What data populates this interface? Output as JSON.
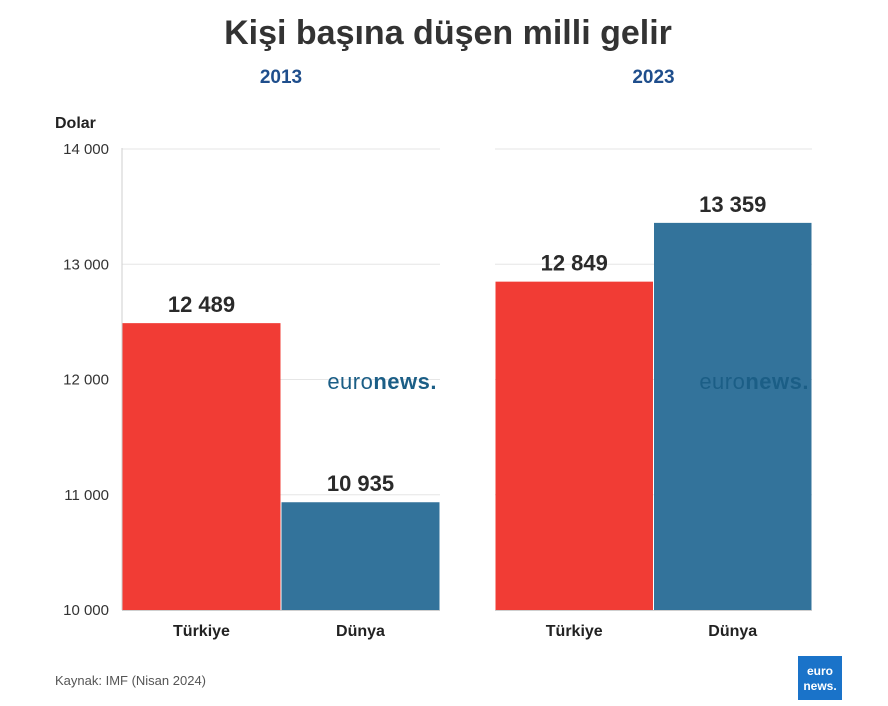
{
  "chart_data": {
    "type": "bar",
    "title": "Kişi başına düşen milli gelir",
    "ylabel": "Dolar",
    "ylim": [
      10000,
      14000
    ],
    "yticks": [
      10000,
      11000,
      12000,
      13000,
      14000
    ],
    "ytick_labels": [
      "10 000",
      "11 000",
      "12 000",
      "13 000",
      "14 000"
    ],
    "grid": true,
    "panels": [
      {
        "period": "2013",
        "categories": [
          "Türkiye",
          "Dünya"
        ],
        "values": [
          12489,
          10935
        ],
        "value_labels": [
          "12 489",
          "10 935"
        ],
        "colors": [
          "#f13c35",
          "#33739b"
        ]
      },
      {
        "period": "2023",
        "categories": [
          "Türkiye",
          "Dünya"
        ],
        "values": [
          12849,
          13359
        ],
        "value_labels": [
          "12 849",
          "13 359"
        ],
        "colors": [
          "#f13c35",
          "#33739b"
        ]
      }
    ]
  },
  "source": "Kaynak: IMF (Nisan 2024)",
  "watermark": {
    "light": "euro",
    "bold": "news."
  },
  "logo": {
    "line1": "euro",
    "line2": "news."
  },
  "colors": {
    "turkiye": "#f13c35",
    "dunya": "#33739b",
    "period": "#1f4e8c",
    "logo_bg": "#1a73c9"
  }
}
